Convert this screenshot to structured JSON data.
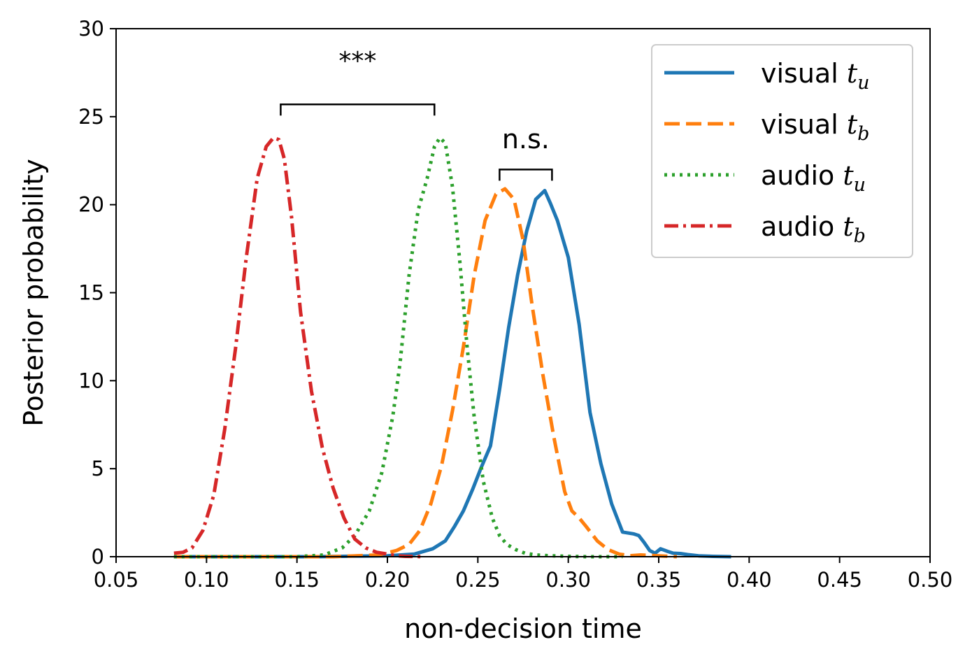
{
  "chart_data": {
    "type": "line",
    "title": "",
    "xlabel": "non-decision time",
    "ylabel": "Posterior probability",
    "xlim": [
      0.05,
      0.5
    ],
    "ylim": [
      0,
      30
    ],
    "xticks": [
      "0.05",
      "0.10",
      "0.15",
      "0.20",
      "0.25",
      "0.30",
      "0.35",
      "0.40",
      "0.45",
      "0.50"
    ],
    "yticks": [
      "0",
      "5",
      "10",
      "15",
      "20",
      "25",
      "30"
    ],
    "grid": false,
    "legend_position": "top-right",
    "series": [
      {
        "name": "visual t_u",
        "legend_main": "visual ",
        "legend_sym": "t",
        "legend_sub": "u",
        "color": "#1f77b4",
        "style": "solid",
        "x": [
          0.082,
          0.16,
          0.2,
          0.215,
          0.225,
          0.232,
          0.237,
          0.242,
          0.247,
          0.252,
          0.257,
          0.262,
          0.267,
          0.272,
          0.277,
          0.282,
          0.287,
          0.29,
          0.294,
          0.3,
          0.306,
          0.312,
          0.318,
          0.324,
          0.33,
          0.336,
          0.339,
          0.342,
          0.345,
          0.348,
          0.351,
          0.355,
          0.358,
          0.362,
          0.366,
          0.372,
          0.38,
          0.39
        ],
        "y": [
          0,
          0,
          0.05,
          0.15,
          0.45,
          0.9,
          1.7,
          2.6,
          3.8,
          5.1,
          6.3,
          9.5,
          13.0,
          16.0,
          18.5,
          20.3,
          20.8,
          20.1,
          19.1,
          17.0,
          13.2,
          8.2,
          5.3,
          3.0,
          1.4,
          1.3,
          1.2,
          0.8,
          0.35,
          0.2,
          0.45,
          0.3,
          0.2,
          0.18,
          0.12,
          0.05,
          0.02,
          0
        ]
      },
      {
        "name": "visual t_b",
        "legend_main": "visual ",
        "legend_sym": "t",
        "legend_sub": "b",
        "color": "#ff7f0e",
        "style": "dashed",
        "x": [
          0.082,
          0.17,
          0.195,
          0.205,
          0.212,
          0.218,
          0.224,
          0.23,
          0.236,
          0.242,
          0.248,
          0.254,
          0.26,
          0.265,
          0.27,
          0.275,
          0.28,
          0.286,
          0.292,
          0.298,
          0.302,
          0.306,
          0.31,
          0.316,
          0.322,
          0.328,
          0.334,
          0.34,
          0.35,
          0.36
        ],
        "y": [
          0,
          0,
          0.1,
          0.35,
          0.7,
          1.5,
          3.0,
          5.2,
          8.3,
          11.9,
          16.0,
          19.1,
          20.6,
          20.9,
          20.3,
          18.0,
          14.3,
          10.3,
          6.8,
          3.7,
          2.6,
          2.2,
          1.7,
          0.9,
          0.4,
          0.15,
          0.05,
          0.1,
          0.05,
          0
        ]
      },
      {
        "name": "audio t_u",
        "legend_main": "audio ",
        "legend_sym": "t",
        "legend_sub": "u",
        "color": "#2ca02c",
        "style": "dotted",
        "x": [
          0.082,
          0.15,
          0.165,
          0.175,
          0.182,
          0.19,
          0.197,
          0.203,
          0.207,
          0.212,
          0.217,
          0.222,
          0.226,
          0.229,
          0.232,
          0.236,
          0.24,
          0.244,
          0.248,
          0.253,
          0.258,
          0.262,
          0.266,
          0.271,
          0.276,
          0.282,
          0.29,
          0.3,
          0.31,
          0.33
        ],
        "y": [
          0,
          0,
          0.1,
          0.5,
          1.2,
          2.6,
          4.8,
          8.0,
          11.0,
          16.0,
          19.7,
          21.5,
          23.3,
          23.8,
          23.5,
          21.0,
          16.8,
          12.0,
          7.9,
          4.3,
          2.2,
          1.2,
          0.7,
          0.4,
          0.2,
          0.1,
          0.05,
          0.02,
          0,
          0
        ]
      },
      {
        "name": "audio t_b",
        "legend_main": "audio ",
        "legend_sym": "t",
        "legend_sub": "b",
        "color": "#d62728",
        "style": "dashdot",
        "x": [
          0.082,
          0.087,
          0.092,
          0.098,
          0.104,
          0.11,
          0.116,
          0.122,
          0.128,
          0.133,
          0.137,
          0.14,
          0.143,
          0.147,
          0.152,
          0.158,
          0.164,
          0.17,
          0.176,
          0.182,
          0.188,
          0.194,
          0.2,
          0.205,
          0.21,
          0.215,
          0.22
        ],
        "y": [
          0.2,
          0.25,
          0.5,
          1.5,
          3.5,
          7.2,
          11.8,
          17.0,
          21.5,
          23.3,
          23.8,
          23.7,
          22.6,
          19.3,
          13.9,
          9.4,
          6.2,
          3.9,
          2.2,
          1.0,
          0.5,
          0.25,
          0.15,
          0.05,
          0.02,
          0.01,
          0
        ]
      }
    ],
    "annotations": [
      {
        "text": "***",
        "x_start": 0.141,
        "x_end": 0.226,
        "y_bracket": 25.7,
        "y_text": 27.7,
        "font": 36
      },
      {
        "text": "n.s.",
        "x_start": 0.262,
        "x_end": 0.291,
        "y_bracket": 22.0,
        "y_text": 23.2,
        "font": 38
      }
    ]
  }
}
